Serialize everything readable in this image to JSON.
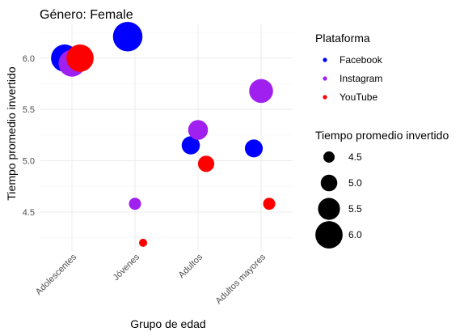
{
  "chart_data": {
    "type": "scatter",
    "title": "Género: Female",
    "xlabel": "Grupo de edad",
    "ylabel": "Tiempo promedio invertido",
    "categories": [
      "Adolescentes",
      "Jóvenes",
      "Adultos",
      "Adultos mayores"
    ],
    "yticks": [
      "4.5",
      "5.0",
      "5.5",
      "6.0"
    ],
    "ylim": [
      4.12,
      6.33
    ],
    "grid": true,
    "legend_position": "right",
    "colors": {
      "Facebook": "#0000ff",
      "Instagram": "#a020f0",
      "YouTube": "#ff0000"
    },
    "series": [
      {
        "name": "Facebook",
        "points": [
          {
            "x": "Adolescentes",
            "y": 6.0
          },
          {
            "x": "Jóvenes",
            "y": 6.21
          },
          {
            "x": "Adultos",
            "y": 5.15
          },
          {
            "x": "Adultos mayores",
            "y": 5.12
          }
        ]
      },
      {
        "name": "Instagram",
        "points": [
          {
            "x": "Adolescentes",
            "y": 5.95
          },
          {
            "x": "Jóvenes",
            "y": 4.58
          },
          {
            "x": "Adultos",
            "y": 5.3
          },
          {
            "x": "Adultos mayores",
            "y": 5.68
          }
        ]
      },
      {
        "name": "YouTube",
        "points": [
          {
            "x": "Adolescentes",
            "y": 6.0
          },
          {
            "x": "Jóvenes",
            "y": 4.2
          },
          {
            "x": "Adultos",
            "y": 4.97
          },
          {
            "x": "Adultos mayores",
            "y": 4.58
          }
        ]
      }
    ],
    "color_legend": {
      "title": "Plataforma",
      "items": [
        "Facebook",
        "Instagram",
        "YouTube"
      ]
    },
    "size_legend": {
      "title": "Tiempo promedio invertido",
      "breaks": [
        "4.5",
        "5.0",
        "5.5",
        "6.0"
      ]
    }
  }
}
